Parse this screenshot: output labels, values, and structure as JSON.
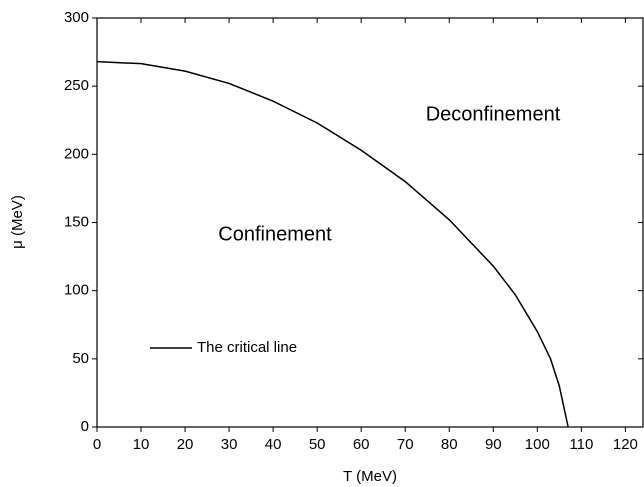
{
  "chart_data": {
    "type": "line",
    "x_label": "T (MeV)",
    "y_label": "μ (MeV)",
    "annotations": [
      "Deconfinement",
      "Confinement"
    ],
    "series": [
      {
        "name": "The critical line",
        "color": "#000000",
        "x": [
          0,
          10,
          20,
          30,
          40,
          50,
          60,
          70,
          80,
          90,
          95,
          100,
          103,
          105,
          106,
          107
        ],
        "values": [
          268,
          266.5,
          261,
          252,
          239,
          223,
          203,
          180,
          152,
          118,
          97,
          70,
          50,
          30,
          15,
          0
        ]
      }
    ],
    "xlim": [
      0,
      124
    ],
    "ylim": [
      0,
      300
    ],
    "xticks": [
      0,
      10,
      20,
      30,
      40,
      50,
      60,
      70,
      80,
      90,
      100,
      110,
      120
    ],
    "yticks": [
      0,
      50,
      100,
      150,
      200,
      250,
      300
    ],
    "legend": "lower left",
    "grid": false
  }
}
